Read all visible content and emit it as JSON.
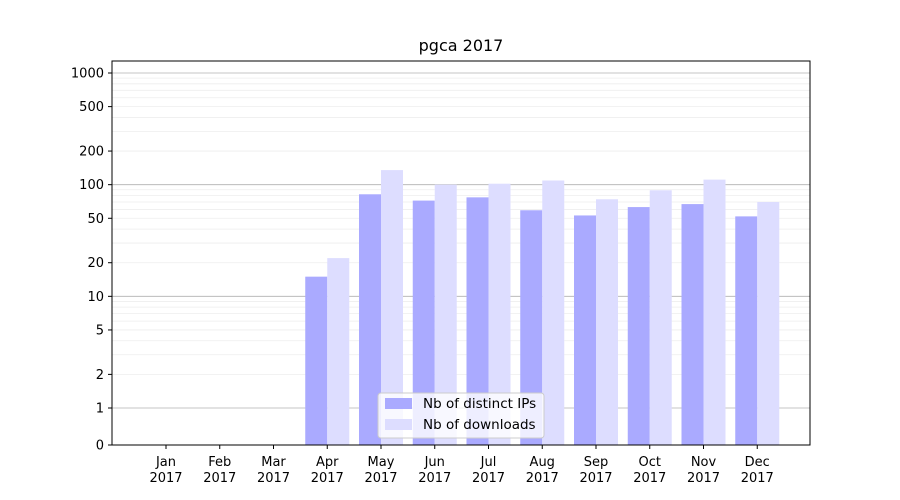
{
  "chart_data": {
    "type": "bar",
    "title": "pgca 2017",
    "xlabel": "",
    "ylabel": "",
    "yscale": "symlog",
    "ylim": [
      0,
      1200
    ],
    "categories": [
      {
        "month": "Jan",
        "year": "2017"
      },
      {
        "month": "Feb",
        "year": "2017"
      },
      {
        "month": "Mar",
        "year": "2017"
      },
      {
        "month": "Apr",
        "year": "2017"
      },
      {
        "month": "May",
        "year": "2017"
      },
      {
        "month": "Jun",
        "year": "2017"
      },
      {
        "month": "Jul",
        "year": "2017"
      },
      {
        "month": "Aug",
        "year": "2017"
      },
      {
        "month": "Sep",
        "year": "2017"
      },
      {
        "month": "Oct",
        "year": "2017"
      },
      {
        "month": "Nov",
        "year": "2017"
      },
      {
        "month": "Dec",
        "year": "2017"
      }
    ],
    "series": [
      {
        "name": "Nb of distinct IPs",
        "color": "#aaaaff",
        "values": [
          0,
          0,
          0,
          15,
          82,
          72,
          77,
          59,
          53,
          63,
          67,
          52
        ]
      },
      {
        "name": "Nb of downloads",
        "color": "#ddddff",
        "values": [
          0,
          0,
          0,
          22,
          135,
          100,
          102,
          109,
          74,
          89,
          111,
          70
        ]
      }
    ],
    "yticks": [
      {
        "value": 0,
        "label": "0"
      },
      {
        "value": 1,
        "label": "1"
      },
      {
        "value": 2,
        "label": "2"
      },
      {
        "value": 5,
        "label": "5"
      },
      {
        "value": 10,
        "label": "10"
      },
      {
        "value": 20,
        "label": "20"
      },
      {
        "value": 50,
        "label": "50"
      },
      {
        "value": 100,
        "label": "100"
      },
      {
        "value": 200,
        "label": "200"
      },
      {
        "value": 500,
        "label": "500"
      },
      {
        "value": 1000,
        "label": "1000"
      }
    ],
    "grid": true,
    "legend_position": "bottom-center"
  }
}
